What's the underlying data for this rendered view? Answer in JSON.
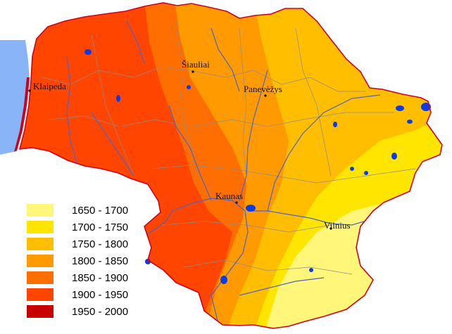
{
  "map": {
    "colors": {
      "sea": "#8AB4F8",
      "border": "#D0021B",
      "river": "#4A64C8",
      "lake": "#0A3CE6",
      "district_line": "#8C8C8C"
    },
    "zones": [
      {
        "range": "1650 - 1700",
        "color": "#FFF67A"
      },
      {
        "range": "1700 - 1750",
        "color": "#FFE500"
      },
      {
        "range": "1750 - 1800",
        "color": "#FFBE00"
      },
      {
        "range": "1800 - 1850",
        "color": "#FF9A00"
      },
      {
        "range": "1850 - 1900",
        "color": "#FF6E00"
      },
      {
        "range": "1900 - 1950",
        "color": "#FF4500"
      },
      {
        "range": "1950 - 2000",
        "color": "#C80000"
      }
    ],
    "cities": [
      {
        "name": "Klaipeda"
      },
      {
        "name": "Šiauliai"
      },
      {
        "name": "Panevėžys"
      },
      {
        "name": "Kaunas"
      },
      {
        "name": "Vilnius"
      }
    ]
  }
}
